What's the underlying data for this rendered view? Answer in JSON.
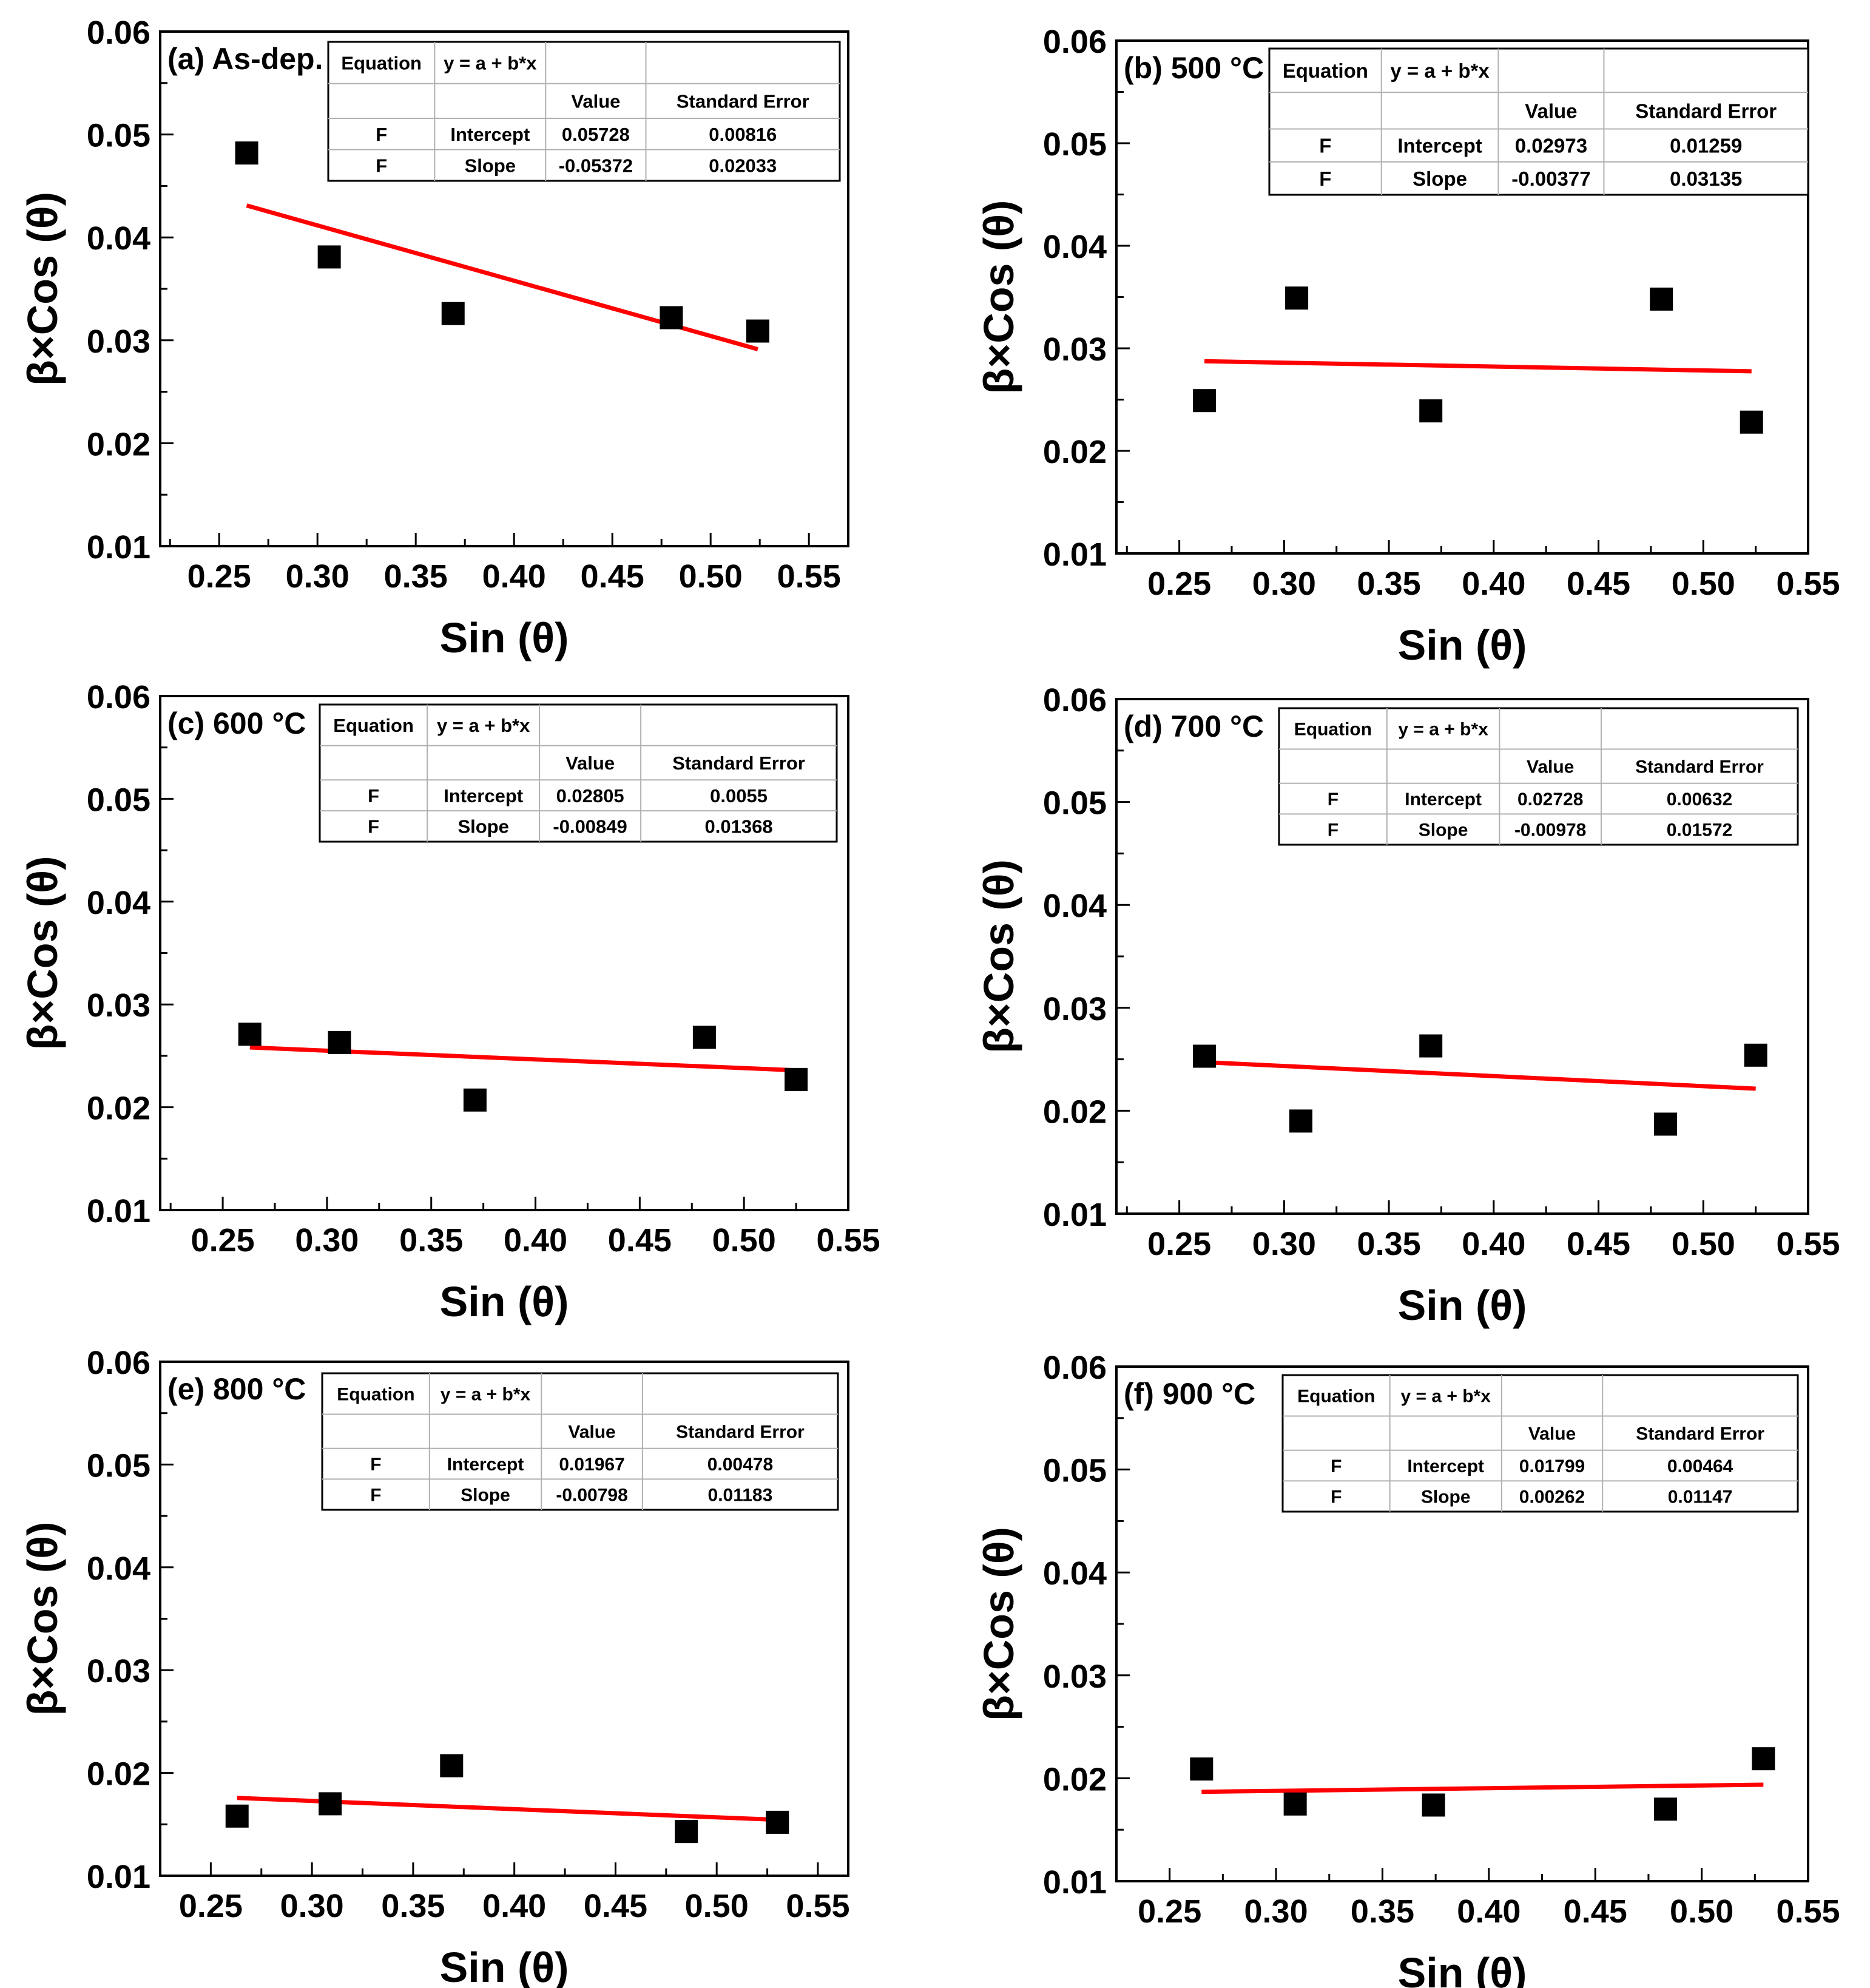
{
  "figure": {
    "colors": {
      "axis": "#000000",
      "fit_line": "#ff0000",
      "points": "#000000",
      "table_grid": "#b0b0b0"
    },
    "icons": {
      "marker": "filled-square"
    }
  },
  "chart_data": [
    {
      "type": "scatter",
      "panel_label": "(a) As-dep.",
      "xlabel": "Sin (θ)",
      "ylabel": "β×Cos (θ)",
      "xlim": [
        0.22,
        0.57
      ],
      "ylim": [
        0.01,
        0.06
      ],
      "xticks": [
        "0.25",
        "0.30",
        "0.35",
        "0.40",
        "0.45",
        "0.50",
        "0.55"
      ],
      "yticks": [
        "0.01",
        "0.02",
        "0.03",
        "0.04",
        "0.05",
        "0.06"
      ],
      "points": {
        "x": [
          0.264,
          0.306,
          0.369,
          0.48,
          0.524
        ],
        "y": [
          0.0482,
          0.0381,
          0.0326,
          0.0322,
          0.0309
        ]
      },
      "fit": {
        "intercept": 0.05728,
        "slope": -0.05372,
        "x_range": [
          0.264,
          0.524
        ]
      },
      "table": {
        "header": [
          "Equation",
          "y = a + b*x",
          "",
          ""
        ],
        "subheader": [
          "",
          "",
          "Value",
          "Standard Error"
        ],
        "rows": [
          [
            "F",
            "Intercept",
            "0.05728",
            "0.00816"
          ],
          [
            "F",
            "Slope",
            "-0.05372",
            "0.02033"
          ]
        ]
      }
    },
    {
      "type": "scatter",
      "panel_label": "(b) 500 °C",
      "xlabel": "Sin (θ)",
      "ylabel": "β×Cos (θ)",
      "xlim": [
        0.22,
        0.55
      ],
      "ylim": [
        0.01,
        0.06
      ],
      "xticks": [
        "0.25",
        "0.30",
        "0.35",
        "0.40",
        "0.45",
        "0.50",
        "0.55"
      ],
      "yticks": [
        "0.01",
        "0.02",
        "0.03",
        "0.04",
        "0.05",
        "0.06"
      ],
      "points": {
        "x": [
          0.262,
          0.306,
          0.37,
          0.48,
          0.523
        ],
        "y": [
          0.0249,
          0.0349,
          0.0239,
          0.0348,
          0.0228
        ]
      },
      "fit": {
        "intercept": 0.02973,
        "slope": -0.00377,
        "x_range": [
          0.262,
          0.523
        ]
      },
      "table": {
        "header": [
          "Equation",
          "y = a + b*x",
          "",
          ""
        ],
        "subheader": [
          "",
          "",
          "Value",
          "Standard Error"
        ],
        "rows": [
          [
            "F",
            "Intercept",
            "0.02973",
            "0.01259"
          ],
          [
            "F",
            "Slope",
            "-0.00377",
            "0.03135"
          ]
        ]
      }
    },
    {
      "type": "scatter",
      "panel_label": "(c) 600 °C",
      "xlabel": "Sin (θ)",
      "ylabel": "β×Cos (θ)",
      "xlim": [
        0.22,
        0.55
      ],
      "ylim": [
        0.01,
        0.06
      ],
      "xticks": [
        "0.25",
        "0.30",
        "0.35",
        "0.40",
        "0.45",
        "0.50",
        "0.55"
      ],
      "yticks": [
        "0.01",
        "0.02",
        "0.03",
        "0.04",
        "0.05",
        "0.06"
      ],
      "points": {
        "x": [
          0.263,
          0.306,
          0.371,
          0.481,
          0.525
        ],
        "y": [
          0.0271,
          0.0263,
          0.0207,
          0.0268,
          0.0227
        ]
      },
      "fit": {
        "intercept": 0.02805,
        "slope": -0.00849,
        "x_range": [
          0.263,
          0.525
        ]
      },
      "table": {
        "header": [
          "Equation",
          "y = a + b*x",
          "",
          ""
        ],
        "subheader": [
          "",
          "",
          "Value",
          "Standard Error"
        ],
        "rows": [
          [
            "F",
            "Intercept",
            "0.02805",
            "0.0055"
          ],
          [
            "F",
            "Slope",
            "-0.00849",
            "0.01368"
          ]
        ]
      }
    },
    {
      "type": "scatter",
      "panel_label": "(d) 700 °C",
      "xlabel": "Sin (θ)",
      "ylabel": "β×Cos (θ)",
      "xlim": [
        0.22,
        0.55
      ],
      "ylim": [
        0.01,
        0.06
      ],
      "xticks": [
        "0.25",
        "0.30",
        "0.35",
        "0.40",
        "0.45",
        "0.50",
        "0.55"
      ],
      "yticks": [
        "0.01",
        "0.02",
        "0.03",
        "0.04",
        "0.05",
        "0.06"
      ],
      "points": {
        "x": [
          0.262,
          0.308,
          0.37,
          0.482,
          0.525
        ],
        "y": [
          0.0253,
          0.019,
          0.0263,
          0.0187,
          0.0254
        ]
      },
      "fit": {
        "intercept": 0.02728,
        "slope": -0.00978,
        "x_range": [
          0.262,
          0.525
        ]
      },
      "table": {
        "header": [
          "Equation",
          "y = a + b*x",
          "",
          ""
        ],
        "subheader": [
          "",
          "",
          "Value",
          "Standard Error"
        ],
        "rows": [
          [
            "F",
            "Intercept",
            "0.02728",
            "0.00632"
          ],
          [
            "F",
            "Slope",
            "-0.00978",
            "0.01572"
          ]
        ]
      }
    },
    {
      "type": "scatter",
      "panel_label": "(e) 800 °C",
      "xlabel": "Sin (θ)",
      "ylabel": "β×Cos (θ)",
      "xlim": [
        0.225,
        0.565
      ],
      "ylim": [
        0.01,
        0.06
      ],
      "xticks": [
        "0.25",
        "0.30",
        "0.35",
        "0.40",
        "0.45",
        "0.50",
        "0.55"
      ],
      "yticks": [
        "0.01",
        "0.02",
        "0.03",
        "0.04",
        "0.05",
        "0.06"
      ],
      "points": {
        "x": [
          0.263,
          0.309,
          0.369,
          0.485,
          0.53
        ],
        "y": [
          0.0158,
          0.017,
          0.0207,
          0.0143,
          0.0152
        ]
      },
      "fit": {
        "intercept": 0.01967,
        "slope": -0.00798,
        "x_range": [
          0.263,
          0.53
        ]
      },
      "table": {
        "header": [
          "Equation",
          "y = a + b*x",
          "",
          ""
        ],
        "subheader": [
          "",
          "",
          "Value",
          "Standard Error"
        ],
        "rows": [
          [
            "F",
            "Intercept",
            "0.01967",
            "0.00478"
          ],
          [
            "F",
            "Slope",
            "-0.00798",
            "0.01183"
          ]
        ]
      }
    },
    {
      "type": "scatter",
      "panel_label": "(f) 900 °C",
      "xlabel": "Sin (θ)",
      "ylabel": "β×Cos (θ)",
      "xlim": [
        0.225,
        0.55
      ],
      "ylim": [
        0.01,
        0.06
      ],
      "xticks": [
        "0.25",
        "0.30",
        "0.35",
        "0.40",
        "0.45",
        "0.50",
        "0.55"
      ],
      "yticks": [
        "0.01",
        "0.02",
        "0.03",
        "0.04",
        "0.05",
        "0.06"
      ],
      "points": {
        "x": [
          0.265,
          0.309,
          0.374,
          0.483,
          0.529
        ],
        "y": [
          0.0209,
          0.0175,
          0.0174,
          0.017,
          0.0219
        ]
      },
      "fit": {
        "intercept": 0.01799,
        "slope": 0.00262,
        "x_range": [
          0.265,
          0.529
        ]
      },
      "table": {
        "header": [
          "Equation",
          "y = a + b*x",
          "",
          ""
        ],
        "subheader": [
          "",
          "",
          "Value",
          "Standard Error"
        ],
        "rows": [
          [
            "F",
            "Intercept",
            "0.01799",
            "0.00464"
          ],
          [
            "F",
            "Slope",
            "0.00262",
            "0.01147"
          ]
        ]
      }
    }
  ]
}
